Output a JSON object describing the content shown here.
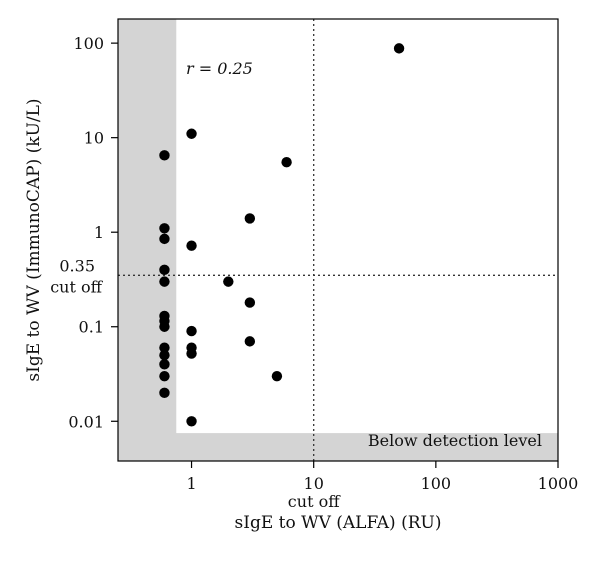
{
  "chart_data": {
    "type": "scatter",
    "xlabel": "sIgE to WV (ALFA) (RU)",
    "ylabel": "sIgE to WV (ImmunoCAP) (kU/L)",
    "x_scale": "log",
    "y_scale": "log",
    "xlim": [
      0.25,
      1000
    ],
    "ylim": [
      0.0038,
      180
    ],
    "x_ticks": [
      {
        "value": 1,
        "label": "1"
      },
      {
        "value": 10,
        "label": "10"
      },
      {
        "value": 100,
        "label": "100"
      },
      {
        "value": 1000,
        "label": "1000"
      }
    ],
    "y_ticks": [
      {
        "value": 0.01,
        "label": "0.01"
      },
      {
        "value": 0.1,
        "label": "0.1"
      },
      {
        "value": 1,
        "label": "1"
      },
      {
        "value": 10,
        "label": "10"
      },
      {
        "value": 100,
        "label": "100"
      }
    ],
    "x_cutoff": {
      "value": 10,
      "label": "cut off"
    },
    "y_cutoff": {
      "value": 0.35,
      "value_label": "0.35",
      "label": "cut off"
    },
    "annotation": {
      "text": "r = 0.25"
    },
    "below_detection": {
      "label": "Below detection level",
      "x_limit": 0.75,
      "y_limit": 0.0075
    },
    "points": [
      {
        "x": 0.6,
        "y": 6.5
      },
      {
        "x": 0.6,
        "y": 1.1
      },
      {
        "x": 0.6,
        "y": 0.85
      },
      {
        "x": 0.6,
        "y": 0.4
      },
      {
        "x": 0.6,
        "y": 0.3
      },
      {
        "x": 0.6,
        "y": 0.13
      },
      {
        "x": 0.6,
        "y": 0.115
      },
      {
        "x": 0.6,
        "y": 0.1
      },
      {
        "x": 0.6,
        "y": 0.06
      },
      {
        "x": 0.6,
        "y": 0.05
      },
      {
        "x": 0.6,
        "y": 0.04
      },
      {
        "x": 0.6,
        "y": 0.03
      },
      {
        "x": 0.6,
        "y": 0.02
      },
      {
        "x": 1,
        "y": 11
      },
      {
        "x": 1,
        "y": 0.72
      },
      {
        "x": 1,
        "y": 0.09
      },
      {
        "x": 1,
        "y": 0.06
      },
      {
        "x": 1,
        "y": 0.052
      },
      {
        "x": 1,
        "y": 0.01
      },
      {
        "x": 2,
        "y": 0.3
      },
      {
        "x": 3,
        "y": 1.4
      },
      {
        "x": 3,
        "y": 0.18
      },
      {
        "x": 3,
        "y": 0.07
      },
      {
        "x": 5,
        "y": 0.03
      },
      {
        "x": 6,
        "y": 5.5
      },
      {
        "x": 50,
        "y": 88
      }
    ]
  }
}
